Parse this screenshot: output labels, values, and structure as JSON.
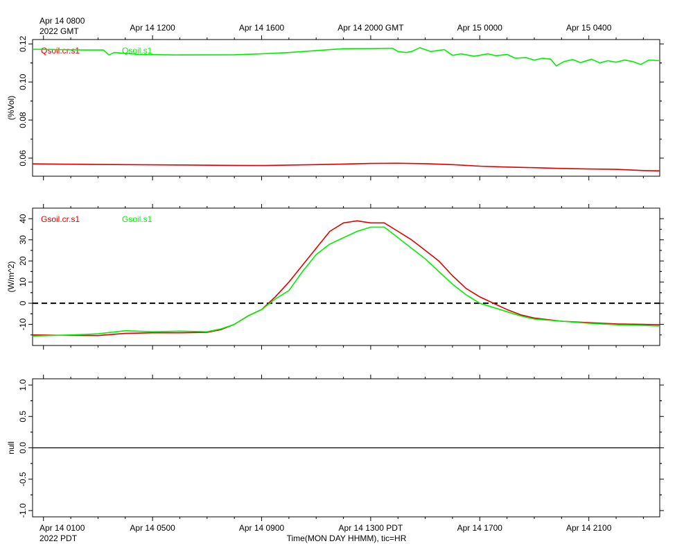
{
  "page": {
    "top_date_line1": "Apr 14 0800",
    "top_date_line2": "2022 GMT",
    "bottom_date_line1": "Apr 14 0100",
    "bottom_date_line2": "2022 PDT",
    "xlabel": "Time(MON DAY HHMM), tic=HR"
  },
  "colors": {
    "red": "#dd0000",
    "green": "#00ee00",
    "axis": "#000000"
  },
  "chart_data": [
    {
      "type": "line",
      "id": "soil_moisture",
      "ylabel": "(%Vol)",
      "ylim": [
        0.0505,
        0.1223
      ],
      "yticks": [
        0.06,
        0.08,
        0.1,
        0.12
      ],
      "ytick_labels": [
        "0.06",
        "0.08",
        "0.10",
        "0.12"
      ],
      "x_unit": "hours since Apr 14 0000 PDT",
      "xlim": [
        0.6,
        23.6
      ],
      "top_axis_ticks": [
        "Apr 14 1200",
        "Apr 14 1600",
        "Apr 14 2000 GMT",
        "Apr 15 0000",
        "Apr 15 0400"
      ],
      "top_axis_tick_hours": [
        5,
        9,
        13,
        17,
        21
      ],
      "series": [
        {
          "name": "Qsoil.cr.s1",
          "color": "#dd0000",
          "x": [
            0.6,
            2,
            4,
            6,
            8,
            9,
            11,
            13,
            14,
            15,
            16,
            17,
            18,
            19,
            20,
            21,
            22,
            23,
            23.6
          ],
          "y": [
            0.057,
            0.0568,
            0.0566,
            0.0564,
            0.0562,
            0.0561,
            0.0566,
            0.0572,
            0.0573,
            0.0571,
            0.0566,
            0.0558,
            0.0553,
            0.055,
            0.0546,
            0.0543,
            0.0541,
            0.0535,
            0.0533
          ]
        },
        {
          "name": "Qsoil.s1",
          "color": "#00ee00",
          "x": [
            0.6,
            1.5,
            2.5,
            3.2,
            3.4,
            3.6,
            4.5,
            6,
            8,
            9,
            10,
            11,
            12,
            13,
            13.8,
            14,
            14.3,
            14.5,
            14.8,
            15.2,
            15.7,
            16,
            16.3,
            16.8,
            17.3,
            17.6,
            18,
            18.3,
            18.7,
            19,
            19.3,
            19.6,
            19.8,
            20.1,
            20.4,
            20.7,
            21.1,
            21.4,
            21.7,
            22,
            22.3,
            22.6,
            22.9,
            23.2,
            23.6
          ],
          "y": [
            0.1172,
            0.117,
            0.1168,
            0.1168,
            0.1142,
            0.1155,
            0.1145,
            0.1142,
            0.1143,
            0.1148,
            0.1155,
            0.1165,
            0.1175,
            0.1176,
            0.1177,
            0.116,
            0.1155,
            0.116,
            0.118,
            0.116,
            0.117,
            0.114,
            0.1148,
            0.1135,
            0.1148,
            0.1138,
            0.1145,
            0.1125,
            0.1128,
            0.1115,
            0.1125,
            0.112,
            0.1085,
            0.1108,
            0.1118,
            0.1102,
            0.112,
            0.11,
            0.1112,
            0.1104,
            0.1115,
            0.1108,
            0.1092,
            0.1115,
            0.1112
          ]
        }
      ]
    },
    {
      "type": "line",
      "id": "soil_heat_flux",
      "ylabel": "(W/m^2)",
      "ylim": [
        -20,
        45
      ],
      "yticks": [
        -10,
        0,
        10,
        20,
        30,
        40
      ],
      "ytick_labels": [
        "-10",
        "0",
        "10",
        "20",
        "30",
        "40"
      ],
      "zero_line": "dashed",
      "x_unit": "hours since Apr 14 0000 PDT",
      "xlim": [
        0.6,
        23.6
      ],
      "series": [
        {
          "name": "Gsoil.cr.s1",
          "color": "#dd0000",
          "x": [
            0.6,
            2,
            3,
            4,
            5,
            6,
            7,
            7.5,
            8,
            8.5,
            9,
            9.5,
            10,
            10.5,
            11,
            11.5,
            12,
            12.5,
            13,
            13.5,
            14,
            14.5,
            15,
            15.5,
            16,
            16.5,
            17,
            17.5,
            18,
            18.5,
            19,
            20,
            21,
            22,
            23,
            23.6
          ],
          "y": [
            -15.0,
            -15.2,
            -15.3,
            -14.3,
            -14.0,
            -14.0,
            -13.8,
            -12.5,
            -10,
            -6,
            -3,
            3,
            10,
            18,
            26,
            34,
            38,
            39,
            38,
            38,
            34,
            30,
            25,
            20,
            13,
            7,
            3,
            0,
            -3,
            -5.5,
            -7,
            -8.5,
            -9.2,
            -9.8,
            -10.0,
            -10.2
          ]
        },
        {
          "name": "Gsoil.s1",
          "color": "#00ee00",
          "x": [
            0.6,
            2,
            3,
            4,
            5,
            6,
            7,
            7.5,
            8,
            8.5,
            9,
            9.5,
            10,
            10.5,
            11,
            11.5,
            12,
            12.5,
            13,
            13.5,
            14,
            14.5,
            15,
            15.5,
            16,
            16.5,
            17,
            17.5,
            18,
            18.5,
            19,
            20,
            21,
            22,
            23,
            23.6
          ],
          "y": [
            -15.5,
            -15.0,
            -14.5,
            -13.0,
            -13.5,
            -13.2,
            -13.5,
            -12.2,
            -10,
            -6,
            -3,
            2,
            6,
            15,
            23,
            28,
            31,
            34,
            36,
            36,
            31,
            26,
            21,
            15,
            9,
            4,
            0,
            -2,
            -4,
            -6,
            -7.5,
            -8.5,
            -9.5,
            -10.2,
            -10.5,
            -10.8
          ]
        }
      ]
    },
    {
      "type": "line",
      "id": "null_panel",
      "ylabel": "null",
      "ylim": [
        -1.1,
        1.1
      ],
      "yticks": [
        -1.0,
        -0.5,
        0.0,
        0.5,
        1.0
      ],
      "ytick_labels": [
        "-1.0",
        "-0.5",
        "0.0",
        "0.5",
        "1.0"
      ],
      "zero_line": "solid",
      "x_unit": "hours since Apr 14 0000 PDT",
      "xlim": [
        0.6,
        23.6
      ],
      "bottom_axis_ticks": [
        "Apr 14 0500",
        "Apr 14 0900",
        "Apr 14 1300 PDT",
        "Apr 14 1700",
        "Apr 14 2100"
      ],
      "bottom_axis_tick_hours": [
        5,
        9,
        13,
        17,
        21
      ],
      "series": []
    }
  ]
}
